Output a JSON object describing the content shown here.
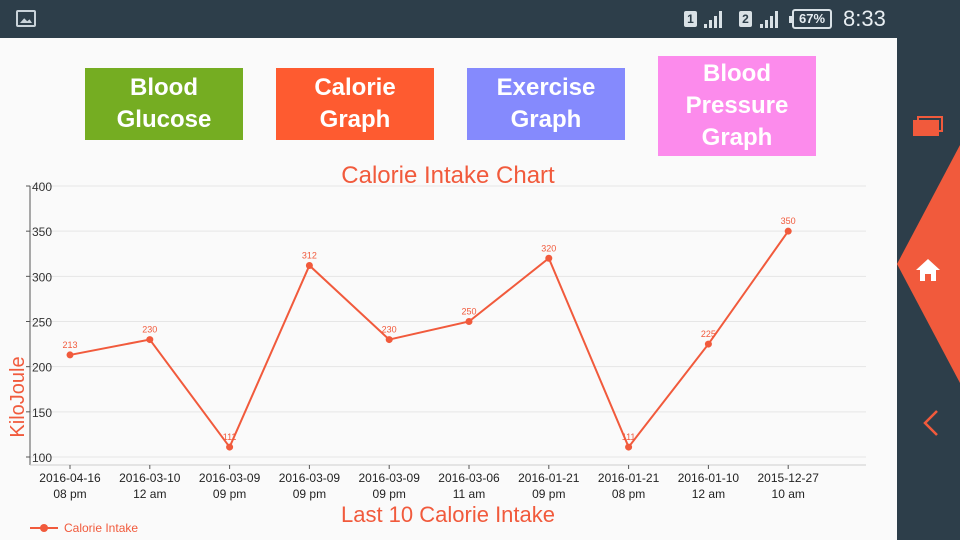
{
  "status_bar": {
    "sim1_label": "1",
    "sim2_label": "2",
    "battery": "67%",
    "time": "8:33",
    "gallery_icon": "gallery-icon"
  },
  "buttons": {
    "glucose": "Blood\nGlucose",
    "calorie": "Calorie\nGraph",
    "exercise": "Exercise\nGraph",
    "blood_pressure": "Blood\nPressure\nGraph"
  },
  "colors": {
    "accent": "#f15a3c",
    "glucose": "#75ad22",
    "calorie": "#fe5b30",
    "exercise": "#858afd",
    "blood_pressure": "#fc8bec",
    "nav_bg": "#2d3e4a"
  },
  "nav": {
    "recents_icon": "recents-icon",
    "home_icon": "home-icon",
    "back_icon": "back-icon"
  },
  "chart_data": {
    "type": "line",
    "title": "Calorie Intake Chart",
    "xlabel": "Last 10 Calorie Intake",
    "ylabel": "KiloJoule",
    "ylim": [
      100,
      400
    ],
    "yticks": [
      100,
      150,
      200,
      250,
      300,
      350,
      400
    ],
    "grid": true,
    "legend_position": "bottom-left",
    "categories": [
      "2016-04-16\n08 pm",
      "2016-03-10\n12 am",
      "2016-03-09\n09 pm",
      "2016-03-09\n09 pm",
      "2016-03-09\n09 pm",
      "2016-03-06\n11 am",
      "2016-01-21\n09 pm",
      "2016-01-21\n08 pm",
      "2016-01-10\n12 am",
      "2015-12-27\n10 am"
    ],
    "series": [
      {
        "name": "Calorie Intake",
        "values": [
          213,
          230,
          111,
          312,
          230,
          250,
          320,
          111,
          225,
          350
        ],
        "color": "#f15a3c"
      }
    ]
  }
}
